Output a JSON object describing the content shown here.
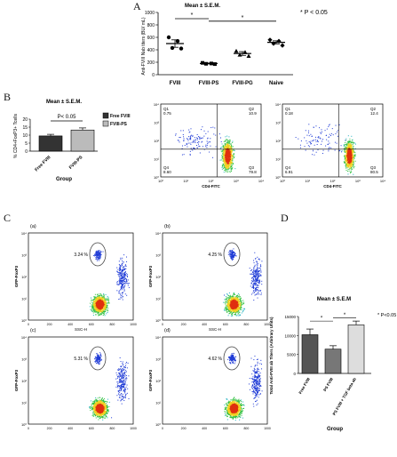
{
  "panels": {
    "a": {
      "letter": "A"
    },
    "b": {
      "letter": "B"
    },
    "c": {
      "letter": "C"
    },
    "d": {
      "letter": "D"
    }
  },
  "chart_data": [
    {
      "id": "A",
      "type": "scatter",
      "title": "Mean ± S.E.M.",
      "annotation": "* P < 0.05",
      "ylabel": "Anti-FVIII Nab titers (BU/ mL)",
      "ylim": [
        0,
        1000
      ],
      "yticks": [
        0,
        200,
        400,
        600,
        800,
        1000
      ],
      "categories": [
        "FVIII",
        "FVIII-PS",
        "FVIII-PG",
        "Naive"
      ],
      "markers": [
        "circle",
        "square",
        "triangle",
        "diamond"
      ],
      "points": [
        [
          600,
          540,
          430,
          420
        ],
        [
          190,
          180,
          175,
          170
        ],
        [
          380,
          360,
          320,
          300
        ],
        [
          560,
          540,
          500,
          470
        ]
      ],
      "means": [
        500,
        180,
        340,
        520
      ],
      "sem": [
        60,
        8,
        30,
        25
      ],
      "significance": [
        {
          "from": 0,
          "to": 1,
          "label": "*"
        },
        {
          "from": 1,
          "to": 3,
          "label": "*"
        }
      ]
    },
    {
      "id": "B-bar",
      "type": "bar",
      "title": "Mean ± S.E.M.",
      "annotation": "P< 0.05",
      "ylabel": "% CD4+FoxP3+ Tcells",
      "xlabel": "Group",
      "ylim": [
        0,
        20
      ],
      "yticks": [
        0,
        5,
        10,
        15,
        20
      ],
      "categories": [
        "Free FVIII",
        "FVIII-PS"
      ],
      "values": [
        9.5,
        13.2
      ],
      "errors": [
        1.0,
        1.3
      ],
      "legend": [
        "Free FVIII",
        "FVIII-PS"
      ]
    },
    {
      "id": "B-flow-1",
      "type": "scatter",
      "xlabel": "CD4-FITC",
      "quadrants": {
        "Q1": "0.75",
        "Q2": "10.9",
        "Q3": "79.8",
        "Q4": "8.60"
      },
      "tick_labels": [
        "10⁰",
        "10¹",
        "10²",
        "10³",
        "10⁴"
      ]
    },
    {
      "id": "B-flow-2",
      "type": "scatter",
      "xlabel": "CD4-FITC",
      "quadrants": {
        "Q1": "0.18",
        "Q2": "12.4",
        "Q3": "80.5",
        "Q4": "6.91"
      },
      "tick_labels": [
        "10⁰",
        "10¹",
        "10²",
        "10³",
        "10⁴"
      ]
    },
    {
      "id": "C-a",
      "type": "scatter",
      "label": "(a)",
      "gate_percent": "3.24 %",
      "ylabel": "GFP-FoxP3",
      "xlabel": "SSC-H",
      "xticks": [
        "0",
        "200",
        "400",
        "600",
        "800",
        "1000"
      ],
      "tick_labels": [
        "10⁰",
        "10¹",
        "10²",
        "10³",
        "10⁴"
      ]
    },
    {
      "id": "C-b",
      "type": "scatter",
      "label": "(b)",
      "gate_percent": "4.25 %",
      "ylabel": "GFP-FoxP3",
      "xlabel": "SSC-H",
      "xticks": [
        "0",
        "200",
        "400",
        "600",
        "800",
        "1000"
      ],
      "tick_labels": [
        "10⁰",
        "10¹",
        "10²",
        "10³",
        "10⁴"
      ]
    },
    {
      "id": "C-c",
      "type": "scatter",
      "label": "(c)",
      "gate_percent": "5.31 %",
      "ylabel": "GFP-FoxP3",
      "xlabel": "",
      "xticks": [
        "0",
        "200",
        "400",
        "600",
        "800",
        "1000"
      ],
      "tick_labels": [
        "10⁰",
        "10¹",
        "10²",
        "10³",
        "10⁴"
      ]
    },
    {
      "id": "C-d",
      "type": "scatter",
      "label": "(d)",
      "gate_percent": "4.62 %",
      "ylabel": "GFP-FoxP3",
      "xlabel": "",
      "xticks": [
        "0",
        "200",
        "400",
        "600",
        "800",
        "1000"
      ],
      "tick_labels": [
        "10⁰",
        "10¹",
        "10²",
        "10³",
        "10⁴"
      ]
    },
    {
      "id": "D",
      "type": "bar",
      "title": "Mean ± S.E.M",
      "annotation": "* P<0.05",
      "ylabel": "Total Anti-FVIII ab Titers (Arbitrary Units)",
      "xlabel": "Group",
      "ylim": [
        0,
        15000
      ],
      "yticks": [
        0,
        5000,
        10000,
        15000
      ],
      "categories": [
        "Free FVIII",
        "PS FVIII",
        "PS FVIII + TGF beta ab"
      ],
      "values": [
        10200,
        6400,
        12800
      ],
      "errors": [
        1500,
        900,
        1000
      ],
      "significance": [
        {
          "from": 0,
          "to": 1,
          "label": "*"
        },
        {
          "from": 1,
          "to": 2,
          "label": "*"
        }
      ]
    }
  ]
}
